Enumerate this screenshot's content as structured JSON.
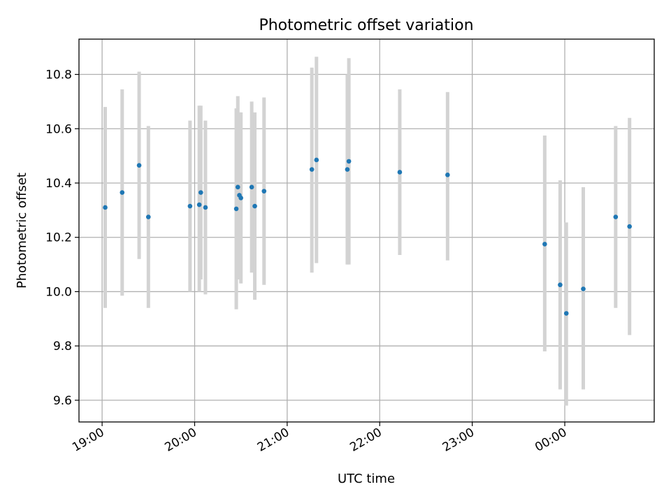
{
  "chart_data": {
    "type": "scatter",
    "title": "Photometric offset variation",
    "xlabel": "UTC time",
    "ylabel": "Photometric offset",
    "x_tick_labels": [
      "19:00",
      "20:00",
      "21:00",
      "22:00",
      "23:00",
      "00:00"
    ],
    "y_tick_labels": [
      "9.6",
      "9.8",
      "10.0",
      "10.2",
      "10.4",
      "10.6",
      "10.8"
    ],
    "y_ticks": [
      9.6,
      9.8,
      10.0,
      10.2,
      10.4,
      10.6,
      10.8
    ],
    "ylim": [
      9.52,
      10.93
    ],
    "xlim": [
      "18:45",
      "00:58"
    ],
    "grid": true,
    "marker_color": "#1f77b4",
    "errorbar_color": "#d3d3d3",
    "points": [
      {
        "x": "19:02",
        "y": 10.31,
        "ylo": 9.94,
        "yhi": 10.68
      },
      {
        "x": "19:13",
        "y": 10.365,
        "ylo": 9.985,
        "yhi": 10.745
      },
      {
        "x": "19:24",
        "y": 10.465,
        "ylo": 10.12,
        "yhi": 10.81
      },
      {
        "x": "19:30",
        "y": 10.275,
        "ylo": 9.94,
        "yhi": 10.61
      },
      {
        "x": "19:57",
        "y": 10.315,
        "ylo": 10.0,
        "yhi": 10.63
      },
      {
        "x": "20:03",
        "y": 10.32,
        "ylo": 10.0,
        "yhi": 10.685
      },
      {
        "x": "20:04",
        "y": 10.365,
        "ylo": 10.045,
        "yhi": 10.685
      },
      {
        "x": "20:07",
        "y": 10.31,
        "ylo": 9.99,
        "yhi": 10.63
      },
      {
        "x": "20:27",
        "y": 10.305,
        "ylo": 9.935,
        "yhi": 10.675
      },
      {
        "x": "20:28",
        "y": 10.385,
        "ylo": 10.045,
        "yhi": 10.72
      },
      {
        "x": "20:29",
        "y": 10.355,
        "ylo": 10.05,
        "yhi": 10.66
      },
      {
        "x": "20:30",
        "y": 10.345,
        "ylo": 10.03,
        "yhi": 10.66
      },
      {
        "x": "20:37",
        "y": 10.385,
        "ylo": 10.07,
        "yhi": 10.7
      },
      {
        "x": "20:39",
        "y": 10.315,
        "ylo": 9.97,
        "yhi": 10.66
      },
      {
        "x": "20:45",
        "y": 10.37,
        "ylo": 10.025,
        "yhi": 10.715
      },
      {
        "x": "21:16",
        "y": 10.45,
        "ylo": 10.07,
        "yhi": 10.825
      },
      {
        "x": "21:19",
        "y": 10.485,
        "ylo": 10.105,
        "yhi": 10.865
      },
      {
        "x": "21:39",
        "y": 10.45,
        "ylo": 10.1,
        "yhi": 10.8
      },
      {
        "x": "21:40",
        "y": 10.48,
        "ylo": 10.1,
        "yhi": 10.86
      },
      {
        "x": "22:13",
        "y": 10.44,
        "ylo": 10.135,
        "yhi": 10.745
      },
      {
        "x": "22:44",
        "y": 10.43,
        "ylo": 10.115,
        "yhi": 10.735
      },
      {
        "x": "23:47",
        "y": 10.175,
        "ylo": 9.78,
        "yhi": 10.575
      },
      {
        "x": "23:57",
        "y": 10.025,
        "ylo": 9.64,
        "yhi": 10.41
      },
      {
        "x": "00:01",
        "y": 9.92,
        "ylo": 9.58,
        "yhi": 10.255
      },
      {
        "x": "00:12",
        "y": 10.01,
        "ylo": 9.64,
        "yhi": 10.385
      },
      {
        "x": "00:33",
        "y": 10.275,
        "ylo": 9.94,
        "yhi": 10.61
      },
      {
        "x": "00:42",
        "y": 10.24,
        "ylo": 9.84,
        "yhi": 10.64
      }
    ]
  }
}
